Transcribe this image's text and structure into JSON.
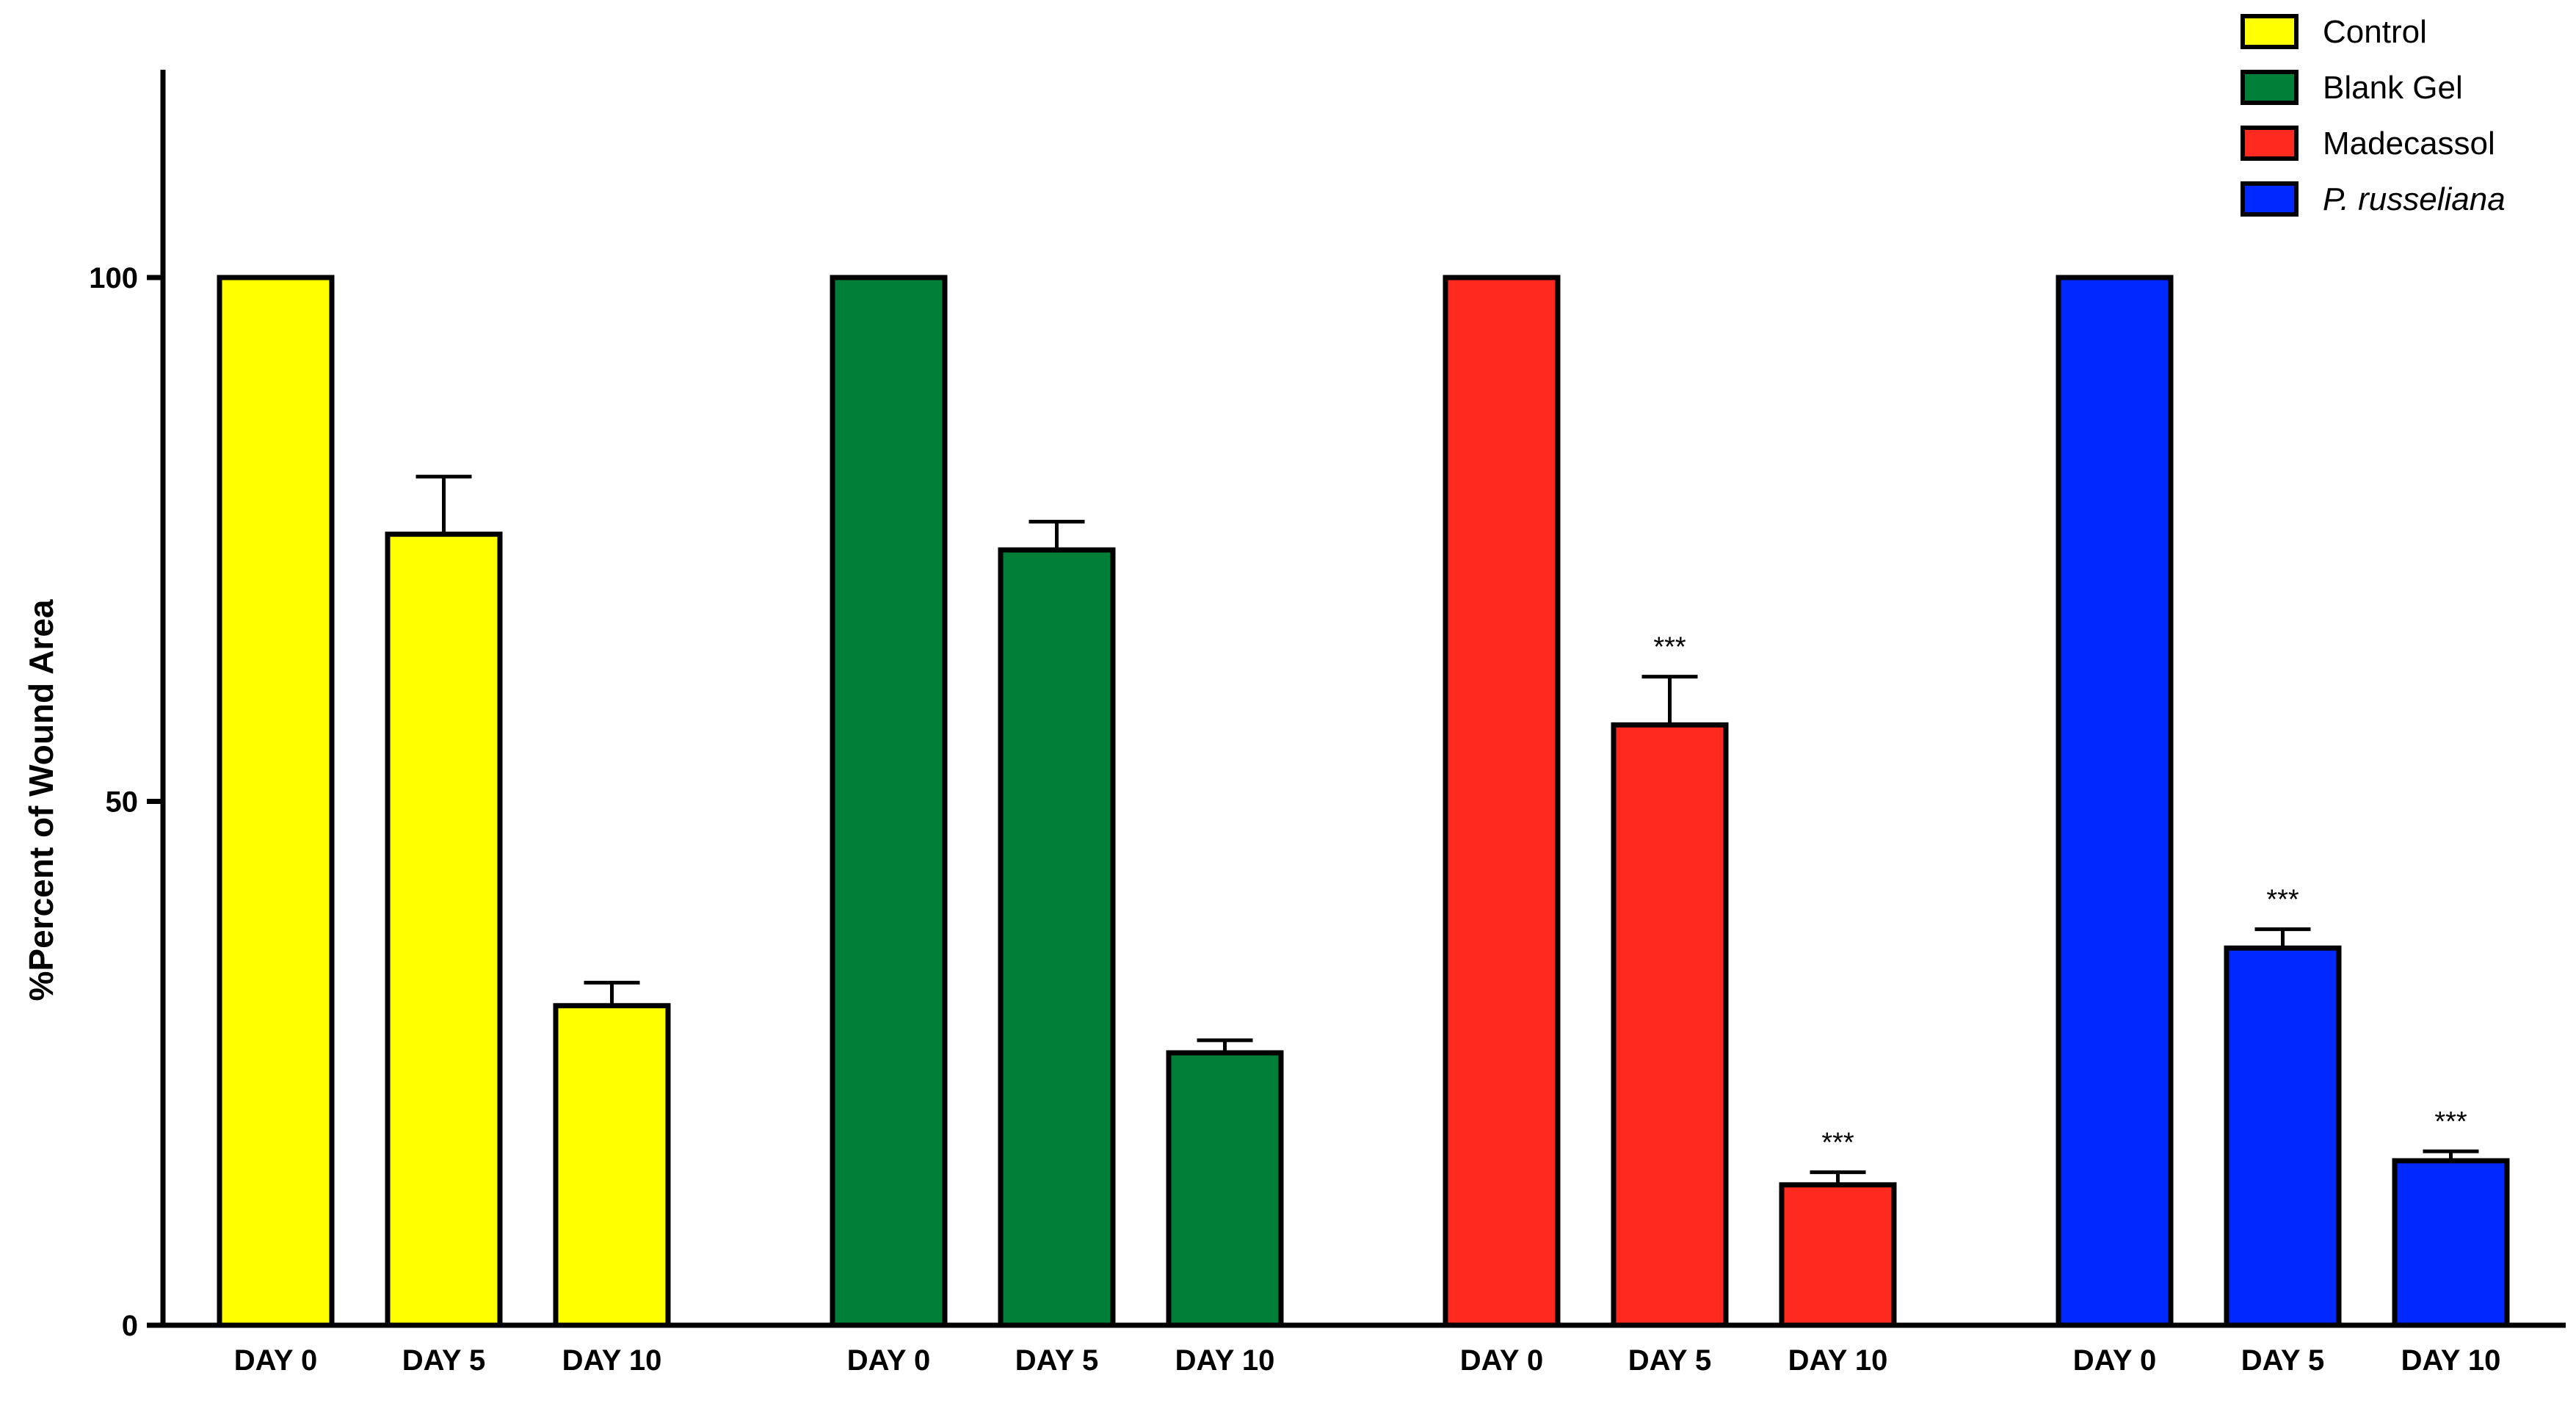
{
  "chart_data": {
    "type": "bar",
    "title": "",
    "xlabel": "",
    "ylabel": "%Percent of Wound Area",
    "ylim": [
      0,
      120
    ],
    "y_ticks": [
      0,
      50,
      100
    ],
    "y_tick_labels": [
      "0",
      "50",
      "100"
    ],
    "grid": false,
    "legend_position": "top-right",
    "error_bars": "one-sided (upper)",
    "categories": [
      "DAY 0",
      "DAY 5",
      "DAY 10"
    ],
    "series": [
      {
        "name": "Control",
        "color": "#FFFF00",
        "italic": false,
        "values": [
          100,
          75.5,
          30.5
        ],
        "errors": [
          0,
          5.5,
          2.2
        ],
        "annotations": [
          "",
          "",
          ""
        ]
      },
      {
        "name": "Blank Gel",
        "color": "#007F38",
        "italic": false,
        "values": [
          100,
          74,
          26
        ],
        "errors": [
          0,
          2.7,
          1.2
        ],
        "annotations": [
          "",
          "",
          ""
        ]
      },
      {
        "name": "Madecassol",
        "color": "#FF2A1F",
        "italic": false,
        "values": [
          100,
          57.3,
          13.4
        ],
        "errors": [
          0,
          4.6,
          1.2
        ],
        "annotations": [
          "",
          "***",
          "***"
        ]
      },
      {
        "name": "P. russeliana",
        "color": "#0029FF",
        "italic": true,
        "values": [
          100,
          36,
          15.7
        ],
        "errors": [
          0,
          1.8,
          0.9
        ],
        "annotations": [
          "",
          "***",
          "***"
        ]
      }
    ]
  }
}
